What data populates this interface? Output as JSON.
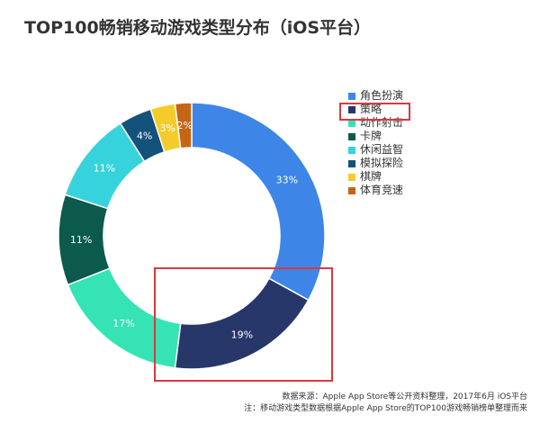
{
  "chart_data": {
    "type": "pie",
    "title": "TOP100畅销移动游戏类型分布（iOS平台）",
    "donut": true,
    "legend_position": "right",
    "slices": [
      {
        "label": "角色扮演",
        "value": 33,
        "display": "33%",
        "color": "#3d86e8"
      },
      {
        "label": "策略",
        "value": 19,
        "display": "19%",
        "color": "#27376a"
      },
      {
        "label": "动作射击",
        "value": 17,
        "display": "17%",
        "color": "#35e3b5"
      },
      {
        "label": "卡牌",
        "value": 11,
        "display": "11%",
        "color": "#0c5a4c"
      },
      {
        "label": "休闲益智",
        "value": 11,
        "display": "11%",
        "color": "#37d3dc"
      },
      {
        "label": "模拟探险",
        "value": 4,
        "display": "4%",
        "color": "#13527a"
      },
      {
        "label": "棋牌",
        "value": 3,
        "display": "3%",
        "color": "#f4cb2b"
      },
      {
        "label": "体育竞速",
        "value": 2,
        "display": "2%",
        "color": "#c56516"
      }
    ]
  },
  "footer": {
    "source": "数据来源：Apple App Store等公开资料整理，2017年6月 iOS平台",
    "note": "注：移动游戏类型数据根据Apple App Store的TOP100游戏畅销榜单整理而来"
  }
}
